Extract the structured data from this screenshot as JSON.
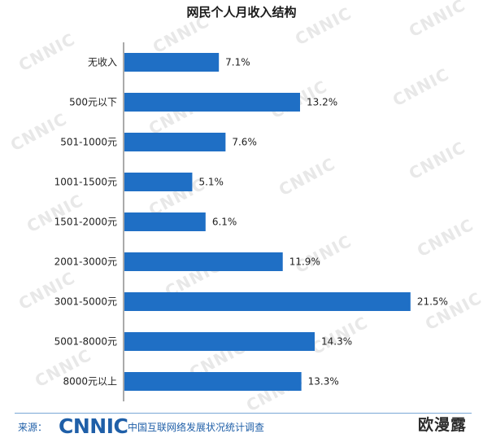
{
  "chart_data": {
    "type": "bar",
    "orientation": "horizontal",
    "title": "网民个人月收入结构",
    "categories": [
      "无收入",
      "500元以下",
      "501-1000元",
      "1001-1500元",
      "1501-2000元",
      "2001-3000元",
      "3001-5000元",
      "5001-8000元",
      "8000元以上"
    ],
    "values": [
      7.1,
      13.2,
      7.6,
      5.1,
      6.1,
      11.9,
      21.5,
      14.3,
      13.3
    ],
    "value_labels": [
      "7.1%",
      "13.2%",
      "7.6%",
      "5.1%",
      "6.1%",
      "11.9%",
      "21.5%",
      "14.3%",
      "13.3%"
    ],
    "xlim": [
      0,
      22
    ],
    "bar_color": "#1f6fc5",
    "grid": false
  },
  "footer": {
    "source_label": "来源：",
    "logo_text": "CNNIC",
    "source_name": "中国互联网络发展状况统计调查",
    "stamp_text": "欧漫露"
  },
  "watermark_text": "CNNIC",
  "colors": {
    "bar": "#1f6fc5",
    "brand": "#1f5fa8"
  }
}
